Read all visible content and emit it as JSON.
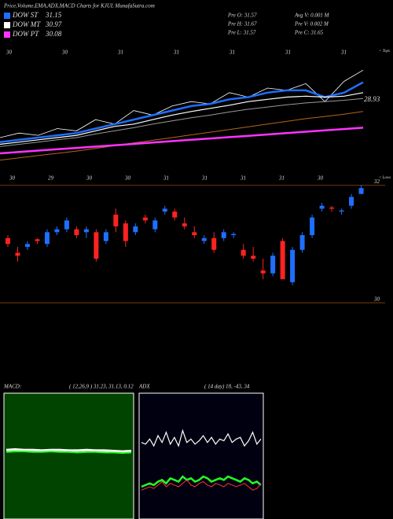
{
  "header": {
    "title": "Price,Volume,EMA,ADX,MACD Charts for KJUL  MunafaSutra.com",
    "info": [
      "Pre  O: 31.57",
      "Avg  V: 0.001  M",
      "Pre  H: 31.67",
      "Pre  V: 0.002  M",
      "Pre  L: 31.57",
      "Pre  C: 31.65"
    ]
  },
  "chart_data": [
    {
      "type": "line",
      "annotation": "28.93",
      "right_top": "< Tops",
      "right_bottom": "< Lows",
      "top_labels": [
        "30",
        "30",
        "31",
        "31",
        "31",
        "31",
        "31"
      ],
      "bottom_labels": [
        "30",
        "29",
        "30",
        "30",
        "31",
        "31",
        "31",
        "31",
        "30"
      ],
      "ylim": [
        27,
        29.5
      ],
      "series": [
        {
          "color": "#ffffff",
          "width": 0.8,
          "values": [
            27.7,
            27.8,
            27.75,
            27.9,
            27.85,
            28.1,
            28.0,
            28.3,
            28.2,
            28.4,
            28.5,
            28.45,
            28.7,
            28.6,
            28.8,
            28.75,
            28.9,
            28.5,
            28.95,
            29.2
          ]
        },
        {
          "name": "DOW ST",
          "legend_value": "31.15",
          "color": "#1e6fff",
          "width": 2.5,
          "values": [
            27.6,
            27.65,
            27.7,
            27.75,
            27.8,
            27.9,
            28.0,
            28.1,
            28.2,
            28.3,
            28.4,
            28.45,
            28.55,
            28.6,
            28.7,
            28.75,
            28.75,
            28.6,
            28.7,
            28.93
          ]
        },
        {
          "name": "DOW MT",
          "legend_value": "30.97",
          "color": "#ffffff",
          "width": 1.2,
          "values": [
            27.55,
            27.6,
            27.65,
            27.7,
            27.75,
            27.85,
            27.95,
            28.0,
            28.1,
            28.2,
            28.28,
            28.35,
            28.42,
            28.5,
            28.55,
            28.6,
            28.62,
            28.6,
            28.62,
            28.7
          ]
        },
        {
          "color": "#999999",
          "width": 1,
          "values": [
            27.5,
            27.55,
            27.6,
            27.65,
            27.7,
            27.78,
            27.85,
            27.92,
            28.0,
            28.07,
            28.14,
            28.2,
            28.27,
            28.33,
            28.38,
            28.43,
            28.47,
            28.5,
            28.53,
            28.57
          ]
        },
        {
          "color": "#b5651d",
          "width": 1,
          "values": [
            27.2,
            27.25,
            27.3,
            27.35,
            27.4,
            27.46,
            27.52,
            27.58,
            27.64,
            27.7,
            27.76,
            27.82,
            27.88,
            27.94,
            28.0,
            28.06,
            28.12,
            28.17,
            28.22,
            28.28
          ]
        },
        {
          "name": "DOW PT",
          "legend_value": "30.08",
          "color": "#ff33ff",
          "width": 2.5,
          "values": [
            27.35,
            27.38,
            27.41,
            27.44,
            27.47,
            27.5,
            27.53,
            27.56,
            27.59,
            27.62,
            27.65,
            27.68,
            27.71,
            27.74,
            27.77,
            27.8,
            27.83,
            27.86,
            27.89,
            27.92
          ]
        }
      ]
    },
    {
      "type": "candlestick",
      "ylim": [
        29.8,
        32.1
      ],
      "yticks": [
        32,
        30
      ],
      "up_color": "#1e6fff",
      "down_color": "#ff2222",
      "open": [
        31.1,
        30.85,
        30.95,
        31.08,
        31.0,
        31.2,
        31.25,
        31.25,
        31.2,
        31.2,
        31.05,
        31.5,
        31.35,
        31.2,
        31.45,
        31.25,
        31.55,
        31.55,
        31.35,
        31.2,
        31.05,
        31.1,
        31.1,
        31.15,
        30.9,
        30.8,
        30.55,
        30.5,
        31.05,
        30.35,
        30.9,
        31.15,
        31.6,
        31.62,
        31.55,
        31.65,
        31.85
      ],
      "high": [
        31.15,
        30.95,
        31.05,
        31.1,
        31.25,
        31.3,
        31.45,
        31.3,
        31.3,
        31.25,
        31.25,
        31.6,
        31.4,
        31.35,
        31.5,
        31.45,
        31.65,
        31.6,
        31.45,
        31.3,
        31.15,
        31.2,
        31.25,
        31.2,
        31.0,
        30.95,
        30.75,
        30.85,
        31.1,
        30.95,
        31.2,
        31.5,
        31.7,
        31.65,
        31.6,
        31.85,
        32.0
      ],
      "low": [
        30.95,
        30.7,
        30.9,
        31.0,
        30.95,
        31.15,
        31.2,
        31.1,
        31.1,
        30.7,
        31.0,
        31.2,
        30.95,
        31.15,
        31.35,
        31.2,
        31.5,
        31.4,
        31.25,
        31.1,
        31.0,
        30.85,
        31.05,
        31.1,
        30.75,
        30.7,
        30.4,
        30.45,
        30.4,
        30.3,
        30.85,
        31.1,
        31.55,
        31.55,
        31.5,
        31.6,
        31.85
      ],
      "close": [
        31.0,
        30.8,
        31.0,
        31.05,
        31.2,
        31.25,
        31.4,
        31.15,
        31.25,
        30.75,
        31.2,
        31.3,
        31.05,
        31.3,
        31.4,
        31.4,
        31.6,
        31.45,
        31.3,
        31.15,
        31.1,
        30.9,
        31.2,
        31.17,
        30.8,
        30.75,
        30.5,
        30.8,
        30.4,
        30.9,
        31.15,
        31.45,
        31.65,
        31.6,
        31.57,
        31.8,
        31.95
      ]
    },
    {
      "type": "line",
      "title": "MACD:",
      "subtitle": "( 12,26,9 ) 31.23, 31.13, 0.12",
      "ylim": [
        -1,
        1
      ],
      "series": [
        {
          "color": "#ffffff",
          "width": 3,
          "values": [
            0.12,
            0.13,
            0.12,
            0.12,
            0.11,
            0.12,
            0.12,
            0.11,
            0.11,
            0.12,
            0.11,
            0.11,
            0.1,
            0.09,
            0.1
          ]
        },
        {
          "color": "#22ff22",
          "width": 2,
          "values": [
            0.08,
            0.09,
            0.09,
            0.08,
            0.08,
            0.09,
            0.08,
            0.08,
            0.07,
            0.08,
            0.08,
            0.07,
            0.07,
            0.06,
            0.07
          ]
        }
      ]
    },
    {
      "type": "line",
      "title": "ADX",
      "subtitle": "( 14  day) 18,  -43,  34",
      "ylim": [
        0,
        60
      ],
      "series": [
        {
          "color": "#ffffff",
          "width": 1.2,
          "values": [
            38,
            37,
            40,
            36,
            42,
            38,
            44,
            37,
            41,
            36,
            45,
            38,
            40,
            37,
            39,
            42,
            38,
            41,
            37,
            40,
            39,
            43,
            38,
            40,
            41,
            36,
            39,
            44,
            37,
            40
          ]
        },
        {
          "color": "#22ff22",
          "width": 2.5,
          "values": [
            12,
            13,
            14,
            13,
            15,
            16,
            14,
            17,
            16,
            15,
            18,
            16,
            17,
            15,
            16,
            18,
            17,
            15,
            16,
            17,
            16,
            18,
            17,
            16,
            15,
            17,
            16,
            14,
            15,
            13
          ]
        },
        {
          "color": "#ff3333",
          "width": 1,
          "values": [
            10,
            11,
            12,
            11,
            13,
            15,
            12,
            14,
            13,
            12,
            14,
            16,
            13,
            12,
            14,
            15,
            13,
            12,
            14,
            13,
            12,
            14,
            13,
            12,
            13,
            14,
            12,
            10,
            11,
            14
          ]
        }
      ]
    }
  ]
}
